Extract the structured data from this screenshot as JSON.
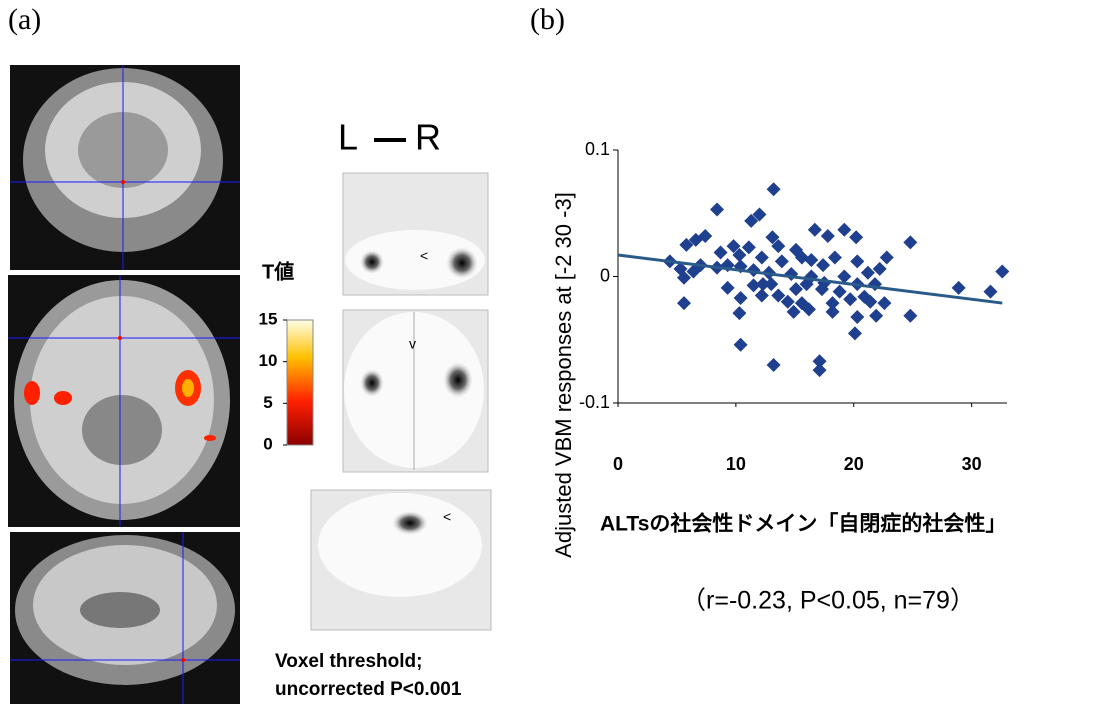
{
  "panel_a": {
    "label": "(a)",
    "orientation_left": "L",
    "orientation_right": "R",
    "colorbar": {
      "title": "T値",
      "lim": [
        0,
        15
      ],
      "ticks": [
        0,
        5,
        10,
        15
      ]
    },
    "threshold_line1": "Voxel threshold;",
    "threshold_line2": "uncorrected P<0.001"
  },
  "panel_b": {
    "label": "(b)"
  },
  "chart_data": {
    "type": "scatter",
    "xlabel": "ALTsの社会性ドメイン「自閉症的社会性」",
    "ylabel": "Adjusted VBM responses at [-2 30 -3]",
    "annotation": "（r=-0.23, P<0.05, n=79）",
    "color": "#1f3f8f",
    "xlim": [
      0,
      33
    ],
    "ylim": [
      -0.1,
      0.1
    ],
    "xticks": [
      0,
      10,
      20,
      30
    ],
    "yticks": [
      0.1,
      0,
      -0.1
    ],
    "x": [
      8.4,
      13.2,
      12.0,
      11.3,
      16.7,
      17.8,
      20.2,
      19.2,
      24.8,
      6.6,
      7.4,
      5.8,
      9.8,
      11.1,
      13.1,
      13.6,
      15.1,
      8.7,
      10.3,
      12.2,
      13.9,
      15.6,
      16.4,
      17.4,
      18.4,
      20.3,
      22.8,
      22.2,
      4.4,
      5.3,
      6.4,
      5.6,
      9.3,
      10.4,
      11.5,
      12.8,
      14.7,
      16.4,
      19.2,
      21.2,
      9.3,
      10.4,
      12.2,
      13.6,
      14.4,
      15.6,
      17.3,
      18.2,
      19.7,
      20.9,
      22.6,
      10.3,
      14.9,
      16.2,
      18.2,
      20.3,
      21.9,
      24.8,
      5.6,
      20.1,
      10.4,
      13.2,
      17.1,
      17.1,
      28.9,
      31.6,
      32.6,
      12.3,
      17.5,
      18.8,
      13.0,
      16.0,
      20.3,
      21.8,
      8.4,
      7.0,
      11.5,
      15.1,
      21.4
    ],
    "values": [
      0.053,
      0.069,
      0.049,
      0.044,
      0.037,
      0.032,
      0.031,
      0.037,
      0.027,
      0.029,
      0.032,
      0.025,
      0.024,
      0.023,
      0.031,
      0.024,
      0.021,
      0.019,
      0.017,
      0.015,
      0.012,
      0.015,
      0.013,
      0.009,
      0.015,
      0.012,
      0.015,
      0.006,
      0.012,
      0.006,
      0.004,
      -0.001,
      0.009,
      0.008,
      0.005,
      0.003,
      0.002,
      0,
      0,
      0.003,
      -0.009,
      -0.017,
      -0.015,
      -0.015,
      -0.02,
      -0.021,
      -0.01,
      -0.021,
      -0.018,
      -0.016,
      -0.021,
      -0.029,
      -0.028,
      -0.026,
      -0.028,
      -0.032,
      -0.031,
      -0.031,
      -0.021,
      -0.045,
      -0.054,
      -0.07,
      -0.067,
      -0.074,
      -0.009,
      -0.012,
      0.004,
      -0.006,
      -0.005,
      -0.012,
      -0.006,
      -0.006,
      -0.006,
      -0.006,
      0.007,
      0.009,
      -0.007,
      -0.01,
      -0.02
    ],
    "trendline": {
      "color": "#2a5a8a",
      "x": [
        0,
        32.6
      ],
      "y": [
        0.017,
        -0.021
      ]
    }
  }
}
